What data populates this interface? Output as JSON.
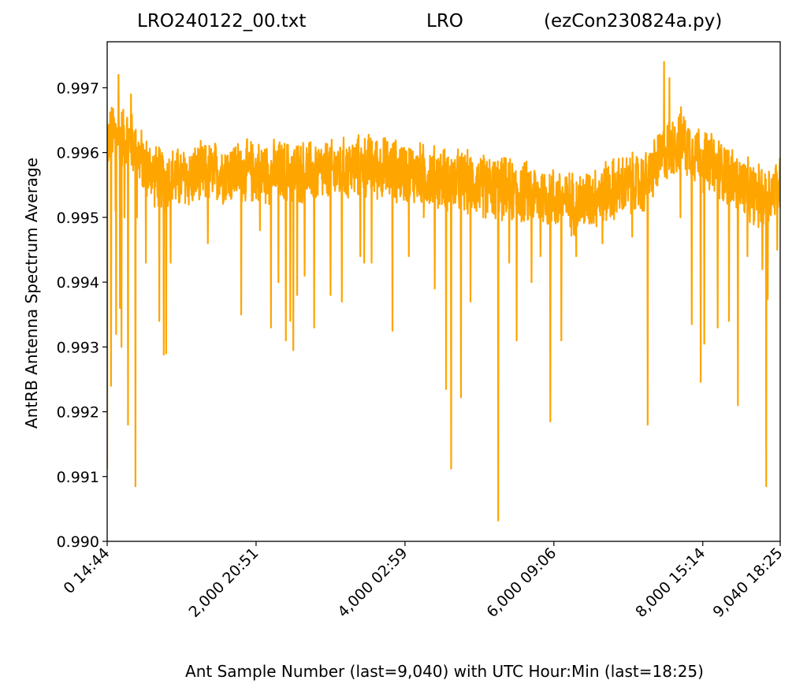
{
  "title": {
    "left": "LRO240122_00.txt",
    "center": "LRO",
    "right": "(ezCon230824a.py)"
  },
  "chart_data": {
    "type": "line",
    "title": "LRO240122_00.txt            LRO          (ezCon230824a.py)",
    "xlabel": "Ant Sample Number (last=9,040) with UTC Hour:Min (last=18:25)",
    "ylabel": "AntRB Antenna Spectrum Average",
    "xlim": [
      0,
      9040
    ],
    "ylim": [
      0.99,
      0.99771
    ],
    "x_ticks": [
      0,
      2000,
      4000,
      6000,
      8000,
      9040
    ],
    "x_tick_labels": [
      "0  14:44",
      "2,000  20:51",
      "4,000  02:59",
      "6,000  09:06",
      "8,000  15:14",
      "9,040  18:25"
    ],
    "y_ticks": [
      0.99,
      0.991,
      0.992,
      0.993,
      0.994,
      0.995,
      0.996,
      0.997
    ],
    "y_tick_labels": [
      "0.990",
      "0.991",
      "0.992",
      "0.993",
      "0.994",
      "0.995",
      "0.996",
      "0.997"
    ],
    "grid": false,
    "series": [
      {
        "color": "#ffa500",
        "baseline": {
          "x": [
            0,
            100,
            300,
            500,
            700,
            1000,
            1500,
            2000,
            2500,
            3000,
            3500,
            4000,
            4500,
            5000,
            5500,
            6000,
            6300,
            6700,
            7000,
            7200,
            7500,
            7700,
            8000,
            8300,
            8600,
            8800,
            9040
          ],
          "y": [
            0.9962,
            0.9963,
            0.9962,
            0.9958,
            0.9956,
            0.9956,
            0.9957,
            0.9957,
            0.9957,
            0.9957,
            0.9958,
            0.9957,
            0.9956,
            0.9955,
            0.9954,
            0.9953,
            0.9952,
            0.9954,
            0.9955,
            0.9955,
            0.996,
            0.9962,
            0.9959,
            0.9957,
            0.9954,
            0.9953,
            0.9955
          ]
        },
        "noise_amplitude": 0.00055,
        "spikes": [
          {
            "x": 0,
            "y": 0.99112
          },
          {
            "x": 50,
            "y": 0.9924
          },
          {
            "x": 110,
            "y": 0.9951
          },
          {
            "x": 120,
            "y": 0.9932
          },
          {
            "x": 150,
            "y": 0.9972
          },
          {
            "x": 170,
            "y": 0.9936
          },
          {
            "x": 190,
            "y": 0.993
          },
          {
            "x": 230,
            "y": 0.995
          },
          {
            "x": 280,
            "y": 0.9918
          },
          {
            "x": 320,
            "y": 0.9969
          },
          {
            "x": 380,
            "y": 0.99085
          },
          {
            "x": 400,
            "y": 0.995
          },
          {
            "x": 470,
            "y": 0.9955
          },
          {
            "x": 520,
            "y": 0.9943
          },
          {
            "x": 700,
            "y": 0.9934
          },
          {
            "x": 760,
            "y": 0.99288
          },
          {
            "x": 790,
            "y": 0.9929
          },
          {
            "x": 850,
            "y": 0.9943
          },
          {
            "x": 1350,
            "y": 0.9946
          },
          {
            "x": 1800,
            "y": 0.9935
          },
          {
            "x": 2050,
            "y": 0.9948
          },
          {
            "x": 2200,
            "y": 0.9933
          },
          {
            "x": 2300,
            "y": 0.994
          },
          {
            "x": 2400,
            "y": 0.9931
          },
          {
            "x": 2460,
            "y": 0.9934
          },
          {
            "x": 2500,
            "y": 0.99295
          },
          {
            "x": 2550,
            "y": 0.9938
          },
          {
            "x": 2650,
            "y": 0.9941
          },
          {
            "x": 2780,
            "y": 0.9933
          },
          {
            "x": 3000,
            "y": 0.9938
          },
          {
            "x": 3150,
            "y": 0.9937
          },
          {
            "x": 3400,
            "y": 0.9944
          },
          {
            "x": 3450,
            "y": 0.9943
          },
          {
            "x": 3550,
            "y": 0.9943
          },
          {
            "x": 3830,
            "y": 0.99325
          },
          {
            "x": 4050,
            "y": 0.9944
          },
          {
            "x": 4250,
            "y": 0.995
          },
          {
            "x": 4400,
            "y": 0.9939
          },
          {
            "x": 4550,
            "y": 0.99235
          },
          {
            "x": 4620,
            "y": 0.99112
          },
          {
            "x": 4750,
            "y": 0.99222
          },
          {
            "x": 4880,
            "y": 0.9937
          },
          {
            "x": 5050,
            "y": 0.995
          },
          {
            "x": 5250,
            "y": 0.99032
          },
          {
            "x": 5400,
            "y": 0.9943
          },
          {
            "x": 5500,
            "y": 0.9931
          },
          {
            "x": 5700,
            "y": 0.994
          },
          {
            "x": 5820,
            "y": 0.9944
          },
          {
            "x": 5950,
            "y": 0.99185
          },
          {
            "x": 6100,
            "y": 0.9931
          },
          {
            "x": 6300,
            "y": 0.9944
          },
          {
            "x": 6650,
            "y": 0.9946
          },
          {
            "x": 7050,
            "y": 0.9947
          },
          {
            "x": 7260,
            "y": 0.9918
          },
          {
            "x": 7480,
            "y": 0.9974
          },
          {
            "x": 7550,
            "y": 0.99715
          },
          {
            "x": 7700,
            "y": 0.995
          },
          {
            "x": 7850,
            "y": 0.99335
          },
          {
            "x": 7970,
            "y": 0.99246
          },
          {
            "x": 8020,
            "y": 0.99305
          },
          {
            "x": 8200,
            "y": 0.9933
          },
          {
            "x": 8350,
            "y": 0.9934
          },
          {
            "x": 8470,
            "y": 0.9921
          },
          {
            "x": 8600,
            "y": 0.9944
          },
          {
            "x": 8800,
            "y": 0.9942
          },
          {
            "x": 8850,
            "y": 0.99085
          },
          {
            "x": 8870,
            "y": 0.99374
          },
          {
            "x": 8950,
            "y": 0.9952
          },
          {
            "x": 9000,
            "y": 0.9945
          }
        ]
      }
    ]
  }
}
